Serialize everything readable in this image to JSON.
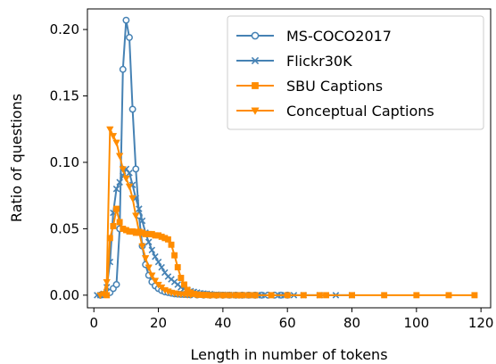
{
  "chart_data": {
    "type": "line",
    "title": "",
    "xlabel": "Length in number of tokens",
    "ylabel": "Ratio of questions",
    "xlim": [
      -2,
      123
    ],
    "ylim": [
      -0.0095,
      0.2155
    ],
    "x_ticks": [
      0,
      20,
      40,
      60,
      80,
      100,
      120
    ],
    "y_ticks": [
      0.0,
      0.05,
      0.1,
      0.15,
      0.2
    ],
    "x_tick_labels": [
      "0",
      "20",
      "40",
      "60",
      "80",
      "100",
      "120"
    ],
    "y_tick_labels": [
      "0.00",
      "0.05",
      "0.10",
      "0.15",
      "0.20"
    ],
    "grid": false,
    "legend_position": "top-right",
    "series": [
      {
        "name": "MS-COCO2017",
        "color": "#4682b4",
        "marker": "circle",
        "x": [
          2,
          3,
          4,
          5,
          6,
          7,
          8,
          9,
          10,
          11,
          12,
          13,
          14,
          15,
          16,
          17,
          18,
          19,
          20,
          21,
          22,
          23,
          24,
          25,
          26,
          27,
          28,
          29,
          30,
          32,
          34,
          36,
          38,
          40,
          42,
          44,
          46,
          48,
          50,
          52,
          54,
          56,
          58,
          60
        ],
        "y": [
          0.0,
          0.0005,
          0.001,
          0.002,
          0.005,
          0.008,
          0.05,
          0.17,
          0.207,
          0.194,
          0.14,
          0.095,
          0.06,
          0.037,
          0.023,
          0.015,
          0.01,
          0.007,
          0.005,
          0.0035,
          0.0025,
          0.002,
          0.0015,
          0.001,
          0.0008,
          0.0006,
          0.0005,
          0.0004,
          0.0003,
          0.0002,
          0.0001,
          0,
          0,
          0,
          0,
          0,
          0,
          0,
          0,
          0,
          0,
          0,
          0,
          0
        ]
      },
      {
        "name": "Flickr30K",
        "color": "#4682b4",
        "marker": "x",
        "x": [
          1,
          2,
          3,
          4,
          5,
          6,
          7,
          8,
          9,
          10,
          11,
          12,
          13,
          14,
          15,
          16,
          17,
          18,
          19,
          20,
          21,
          22,
          23,
          24,
          25,
          26,
          27,
          28,
          29,
          30,
          31,
          32,
          33,
          34,
          35,
          36,
          38,
          40,
          42,
          44,
          46,
          48,
          50,
          52,
          55,
          58,
          62,
          65,
          70,
          75,
          80
        ],
        "y": [
          0.0,
          0.0,
          0.001,
          0.006,
          0.025,
          0.062,
          0.08,
          0.085,
          0.09,
          0.095,
          0.092,
          0.083,
          0.073,
          0.065,
          0.056,
          0.047,
          0.04,
          0.034,
          0.029,
          0.025,
          0.021,
          0.017,
          0.014,
          0.012,
          0.01,
          0.008,
          0.006,
          0.005,
          0.004,
          0.003,
          0.0025,
          0.002,
          0.0015,
          0.0012,
          0.001,
          0.0008,
          0.0005,
          0.0003,
          0.0002,
          0.0001,
          0,
          0,
          0,
          0,
          0,
          0,
          0,
          0,
          0,
          0,
          0
        ]
      },
      {
        "name": "SBU Captions",
        "color": "#ff8c00",
        "marker": "square",
        "x": [
          4,
          5,
          6,
          7,
          8,
          9,
          10,
          11,
          12,
          13,
          14,
          15,
          16,
          17,
          18,
          19,
          20,
          21,
          22,
          23,
          24,
          25,
          26,
          27,
          28,
          29,
          30,
          31,
          32,
          33,
          34,
          35,
          36,
          38,
          40,
          42,
          44,
          46,
          48,
          50,
          55,
          60,
          65,
          70,
          72,
          80,
          90,
          100,
          110,
          118
        ],
        "y": [
          0.0,
          0.043,
          0.052,
          0.065,
          0.055,
          0.05,
          0.049,
          0.048,
          0.048,
          0.047,
          0.047,
          0.047,
          0.046,
          0.046,
          0.046,
          0.045,
          0.045,
          0.044,
          0.043,
          0.042,
          0.038,
          0.03,
          0.021,
          0.013,
          0.008,
          0.004,
          0.002,
          0.001,
          0.0005,
          0.0003,
          0.0002,
          0.0001,
          0,
          0,
          0,
          0,
          0,
          0,
          0,
          0,
          0,
          0,
          0,
          0,
          0,
          0,
          0,
          0,
          0,
          0
        ]
      },
      {
        "name": "Conceptual Captions",
        "color": "#ff8c00",
        "marker": "triangle-down",
        "x": [
          2,
          3,
          4,
          5,
          6,
          7,
          8,
          9,
          10,
          11,
          12,
          13,
          14,
          15,
          16,
          17,
          18,
          19,
          20,
          21,
          22,
          23,
          24,
          25,
          26,
          27,
          28,
          29,
          30,
          32,
          34,
          36,
          38,
          40,
          45,
          50
        ],
        "y": [
          0.0,
          0.001,
          0.01,
          0.125,
          0.12,
          0.115,
          0.105,
          0.095,
          0.088,
          0.082,
          0.073,
          0.06,
          0.048,
          0.037,
          0.028,
          0.021,
          0.015,
          0.011,
          0.008,
          0.006,
          0.004,
          0.003,
          0.002,
          0.0015,
          0.001,
          0.0008,
          0.0006,
          0.0004,
          0.0003,
          0.0002,
          0.0001,
          0,
          0,
          0,
          0,
          0
        ]
      }
    ]
  }
}
